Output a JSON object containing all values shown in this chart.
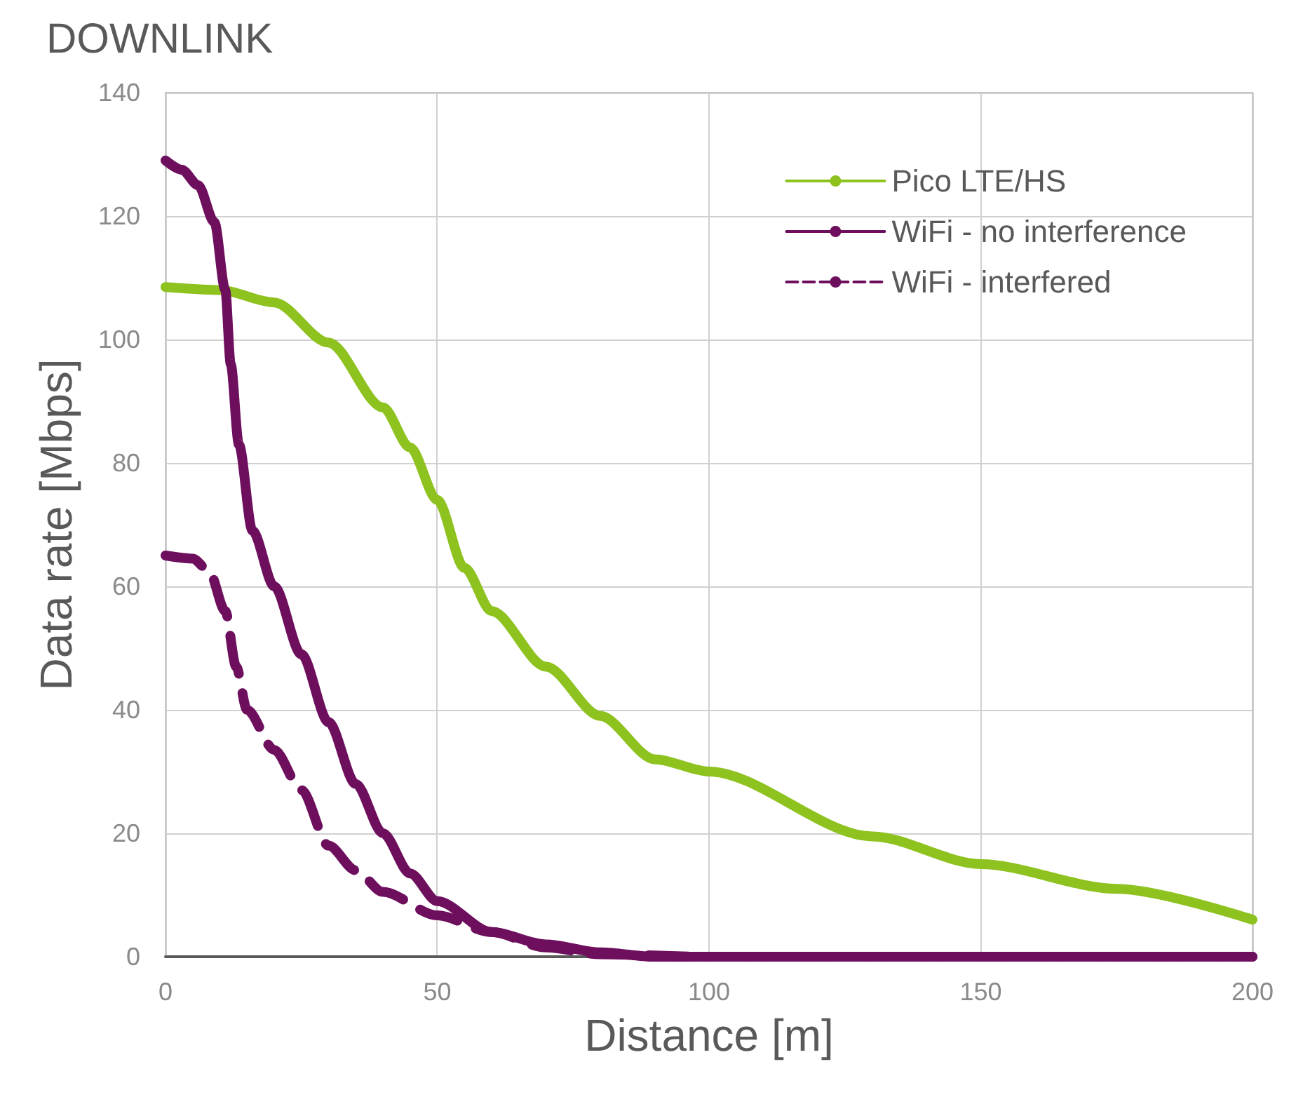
{
  "chart_data": {
    "type": "line",
    "title": "DOWNLINK",
    "xlabel": "Distance [m]",
    "ylabel": "Data rate [Mbps]",
    "xlim": [
      0,
      200
    ],
    "xticks": [
      0,
      50,
      100,
      150,
      200
    ],
    "ylim": [
      0,
      140
    ],
    "yticks": [
      0,
      20,
      40,
      60,
      80,
      100,
      120,
      140
    ],
    "grid": true,
    "legend": "top right",
    "marker": "none",
    "series": [
      {
        "name": "Pico LTE/HS",
        "color": "#8dc21f",
        "line_style": "solid",
        "x": [
          0,
          10,
          20,
          30,
          40,
          45,
          50,
          55,
          60,
          70,
          80,
          90,
          100,
          130,
          150,
          175,
          200
        ],
        "values": [
          108.5,
          108,
          106,
          99.5,
          89,
          82.5,
          74,
          63,
          56,
          47,
          39,
          32,
          30,
          19.5,
          15,
          11,
          6
        ]
      },
      {
        "name": "WiFi - no interference",
        "color": "#6e0f5e",
        "line_style": "solid",
        "x": [
          0,
          3,
          6,
          9,
          11,
          12,
          13.5,
          16,
          20,
          25,
          30,
          35,
          40,
          45,
          50,
          60,
          70,
          80,
          90,
          100,
          150,
          200
        ],
        "values": [
          129,
          127.5,
          125,
          119,
          108,
          96,
          83,
          69,
          60,
          49,
          38,
          28,
          20,
          13.5,
          9,
          4,
          2,
          0.7,
          0,
          0,
          0,
          0
        ]
      },
      {
        "name": "WiFi - interfered",
        "color": "#6e0f5e",
        "line_style": "dashed",
        "x": [
          0,
          5,
          8,
          11,
          13,
          15,
          20,
          25,
          30,
          35,
          40,
          50,
          60,
          70,
          80,
          100,
          150,
          200
        ],
        "values": [
          65,
          64.5,
          62.5,
          56,
          47,
          40,
          33.5,
          27,
          18,
          14,
          10.5,
          6.7,
          4,
          1.5,
          0.4,
          0,
          0,
          0
        ]
      }
    ]
  }
}
